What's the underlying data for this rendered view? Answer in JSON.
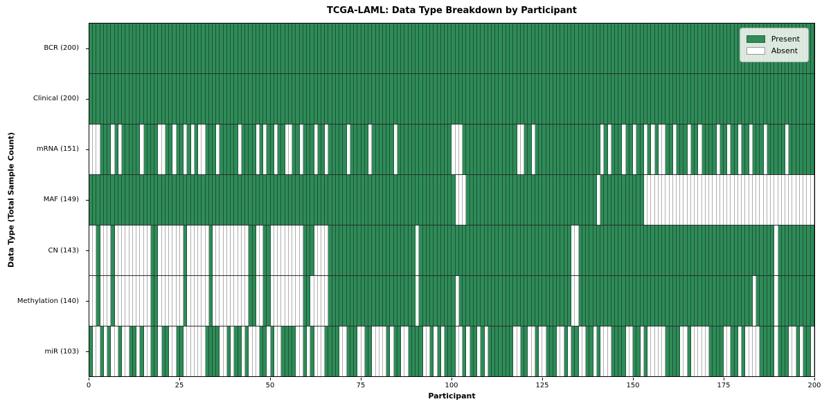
{
  "title": "TCGA-LAML: Data Type Breakdown by Participant",
  "axes": {
    "x_label": "Participant",
    "y_label": "Data Type (Total Sample Count)",
    "x_ticks": [
      "0",
      "25",
      "50",
      "75",
      "100",
      "125",
      "150",
      "175",
      "200"
    ]
  },
  "legend": {
    "items": [
      {
        "label": "Present",
        "color": "#2f8b58"
      },
      {
        "label": "Absent",
        "color": "#ffffff"
      }
    ]
  },
  "colors": {
    "present": "#2f8b58",
    "absent": "#ffffff",
    "grid_on_green": "rgba(10,40,25,0.55)",
    "grid_on_white": "#adadad"
  },
  "chart_data": {
    "type": "heatmap",
    "title": "TCGA-LAML: Data Type Breakdown by Participant",
    "xlabel": "Participant",
    "ylabel": "Data Type (Total Sample Count)",
    "x_range": [
      0,
      200
    ],
    "n_participants": 200,
    "legend_entries": [
      "Present",
      "Absent"
    ],
    "legend_position": "upper right",
    "encoding": "each row lists participant indices (0-based) where the data type is ABSENT; all other participants are PRESENT",
    "rows": [
      {
        "label": "BCR (200)",
        "data_type": "BCR",
        "present_count": 200,
        "absent_participants": []
      },
      {
        "label": "Clinical (200)",
        "data_type": "Clinical",
        "present_count": 200,
        "absent_participants": []
      },
      {
        "label": "mRNA (151)",
        "data_type": "mRNA",
        "present_count": 151,
        "absent_participants": [
          0,
          1,
          2,
          6,
          8,
          14,
          19,
          20,
          23,
          26,
          28,
          30,
          31,
          35,
          41,
          46,
          48,
          51,
          54,
          55,
          58,
          62,
          65,
          71,
          77,
          84,
          100,
          101,
          102,
          118,
          119,
          122,
          141,
          143,
          147,
          150,
          153,
          155,
          157,
          158,
          161,
          165,
          168,
          173,
          176,
          179,
          182,
          186,
          192
        ]
      },
      {
        "label": "MAF (149)",
        "data_type": "MAF",
        "present_count": 149,
        "absent_participants": [
          101,
          102,
          103,
          140,
          153,
          154,
          155,
          156,
          157,
          158,
          159,
          160,
          161,
          162,
          163,
          164,
          165,
          166,
          167,
          168,
          169,
          170,
          171,
          172,
          173,
          174,
          175,
          176,
          177,
          178,
          179,
          180,
          181,
          182,
          183,
          184,
          185,
          186,
          187,
          188,
          189,
          190,
          191,
          192,
          193,
          194,
          195,
          196,
          197,
          198,
          199
        ]
      },
      {
        "label": "CN (143)",
        "data_type": "CN",
        "present_count": 143,
        "absent_participants": [
          0,
          1,
          3,
          4,
          5,
          7,
          8,
          9,
          10,
          11,
          12,
          13,
          14,
          15,
          16,
          19,
          20,
          21,
          22,
          23,
          24,
          25,
          27,
          28,
          29,
          30,
          31,
          32,
          34,
          35,
          36,
          37,
          38,
          39,
          40,
          41,
          42,
          43,
          46,
          47,
          50,
          51,
          52,
          53,
          54,
          55,
          56,
          57,
          58,
          62,
          63,
          64,
          65,
          90,
          133,
          134,
          189
        ]
      },
      {
        "label": "Methylation (140)",
        "data_type": "Methylation",
        "present_count": 140,
        "absent_participants": [
          0,
          1,
          3,
          4,
          5,
          7,
          8,
          9,
          10,
          11,
          12,
          13,
          14,
          15,
          16,
          19,
          20,
          21,
          22,
          23,
          24,
          25,
          27,
          28,
          29,
          30,
          31,
          32,
          34,
          35,
          36,
          37,
          38,
          39,
          40,
          41,
          42,
          43,
          46,
          47,
          50,
          51,
          52,
          53,
          54,
          55,
          56,
          57,
          58,
          61,
          62,
          63,
          64,
          65,
          90,
          101,
          133,
          134,
          183,
          189
        ]
      },
      {
        "label": "miR (103)",
        "data_type": "miR",
        "present_count": 103,
        "absent_participants": [
          1,
          2,
          4,
          6,
          7,
          9,
          10,
          13,
          15,
          16,
          19,
          22,
          23,
          26,
          27,
          28,
          29,
          30,
          31,
          36,
          37,
          39,
          42,
          44,
          45,
          46,
          49,
          51,
          52,
          57,
          58,
          60,
          62,
          63,
          64,
          69,
          70,
          74,
          75,
          78,
          79,
          80,
          81,
          83,
          86,
          87,
          92,
          93,
          95,
          97,
          101,
          102,
          104,
          107,
          109,
          117,
          118,
          121,
          122,
          124,
          125,
          129,
          130,
          132,
          135,
          136,
          139,
          141,
          142,
          143,
          148,
          149,
          152,
          154,
          155,
          156,
          157,
          158,
          163,
          164,
          166,
          167,
          168,
          169,
          170,
          175,
          176,
          179,
          181,
          182,
          183,
          184,
          189,
          193,
          194,
          196,
          199
        ]
      }
    ]
  }
}
